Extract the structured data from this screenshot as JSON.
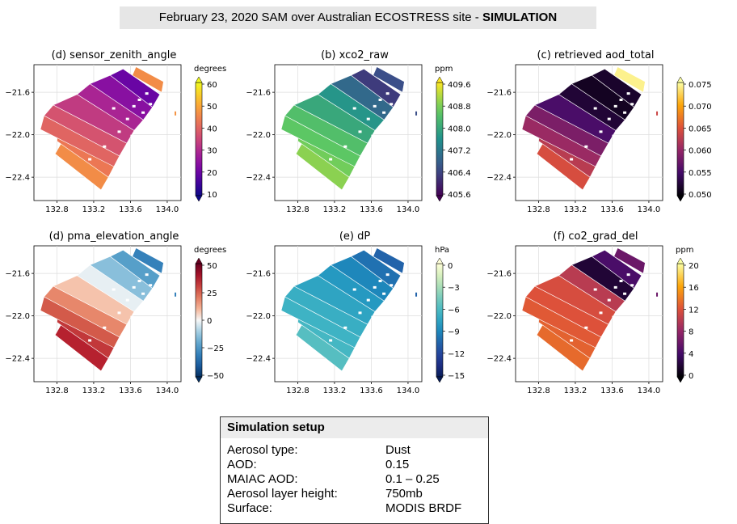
{
  "header": {
    "title_prefix": "February 23, 2020 SAM over Australian ECOSTRESS site - ",
    "title_bold": "SIMULATION"
  },
  "chart_data": [
    {
      "type": "heatmap",
      "id": "d1",
      "title": "(d) sensor_zenith_angle",
      "colorbar_label": "degrees",
      "colormap": "plasma",
      "reverse_gradient": true,
      "clim": [
        10,
        60
      ],
      "colorbar_ticks": [
        "60",
        "50",
        "40",
        "30",
        "20",
        "10"
      ],
      "xticks": [
        "132.8",
        "133.2",
        "133.6",
        "134.0"
      ],
      "xtick_values": [
        132.8,
        133.2,
        133.6,
        134.0
      ],
      "yticks": [
        "-21.6",
        "-22.0",
        "-22.4"
      ],
      "ytick_values": [
        -21.6,
        -22.0,
        -22.4
      ]
    },
    {
      "type": "heatmap",
      "id": "b",
      "title": "(b) xco2_raw",
      "colorbar_label": "ppm",
      "colormap": "viridis",
      "reverse_gradient": false,
      "clim": [
        405.6,
        409.6
      ],
      "colorbar_ticks": [
        "409.6",
        "408.8",
        "408.0",
        "407.2",
        "406.4",
        "405.6"
      ],
      "xticks": [
        "132.8",
        "133.2",
        "133.6",
        "134.0"
      ],
      "xtick_values": [
        132.8,
        133.2,
        133.6,
        134.0
      ],
      "yticks": [
        "-21.6",
        "-22.0",
        "-22.4"
      ],
      "ytick_values": [
        -21.6,
        -22.0,
        -22.4
      ]
    },
    {
      "type": "heatmap",
      "id": "c",
      "title": "(c) retrieved aod_total",
      "colorbar_label": "",
      "colormap": "inferno",
      "reverse_gradient": false,
      "clim": [
        0.05,
        0.075
      ],
      "colorbar_ticks": [
        "0.075",
        "0.070",
        "0.065",
        "0.060",
        "0.055",
        "0.050"
      ],
      "xticks": [
        "132.8",
        "133.2",
        "133.6",
        "134.0"
      ],
      "xtick_values": [
        132.8,
        133.2,
        133.6,
        134.0
      ],
      "yticks": [
        "-21.6",
        "-22.0",
        "-22.4"
      ],
      "ytick_values": [
        -21.6,
        -22.0,
        -22.4
      ]
    },
    {
      "type": "heatmap",
      "id": "d2",
      "title": "(d) pma_elevation_angle",
      "colorbar_label": "degrees",
      "colormap": "rdbu_r",
      "reverse_gradient": false,
      "clim": [
        -60,
        60
      ],
      "colorbar_ticks": [
        "50",
        "25",
        "0",
        "−25",
        "−50"
      ],
      "xticks": [
        "132.8",
        "133.2",
        "133.6",
        "134.0"
      ],
      "xtick_values": [
        132.8,
        133.2,
        133.6,
        134.0
      ],
      "yticks": [
        "-21.6",
        "-22.0",
        "-22.4"
      ],
      "ytick_values": [
        -21.6,
        -22.0,
        -22.4
      ]
    },
    {
      "type": "heatmap",
      "id": "e",
      "title": "(e) dP",
      "colorbar_label": "hPa",
      "colormap": "ylgnbu_r",
      "reverse_gradient": false,
      "clim": [
        -16.5,
        0
      ],
      "colorbar_ticks": [
        "0",
        "−3",
        "−6",
        "−9",
        "−12",
        "−15"
      ],
      "xticks": [
        "132.8",
        "133.2",
        "133.6",
        "134.0"
      ],
      "xtick_values": [
        132.8,
        133.2,
        133.6,
        134.0
      ],
      "yticks": [
        "-21.6",
        "-22.0",
        "-22.4"
      ],
      "ytick_values": [
        -21.6,
        -22.0,
        -22.4
      ]
    },
    {
      "type": "heatmap",
      "id": "f",
      "title": "(f) co2_grad_del",
      "colorbar_label": "ppm",
      "colormap": "inferno",
      "reverse_gradient": true,
      "clim": [
        0,
        20
      ],
      "colorbar_ticks": [
        "20",
        "16",
        "12",
        "8",
        "4",
        "0"
      ],
      "xticks": [
        "132.8",
        "133.2",
        "133.6",
        "134.0"
      ],
      "xtick_values": [
        132.8,
        133.2,
        133.6,
        134.0
      ],
      "yticks": [
        "-21.6",
        "-22.0",
        "-22.4"
      ],
      "ytick_values": [
        -21.6,
        -22.0,
        -22.4
      ]
    }
  ],
  "setup": {
    "heading": "Simulation setup",
    "rows": [
      {
        "k": "Aerosol type:",
        "v": "Dust"
      },
      {
        "k": "AOD:",
        "v": "0.15"
      },
      {
        "k": "MAIAC AOD:",
        "v": "0.1 – 0.25"
      },
      {
        "k": "Aerosol layer height:",
        "v": "750mb"
      },
      {
        "k": "Surface:",
        "v": "MODIS BRDF"
      }
    ]
  }
}
